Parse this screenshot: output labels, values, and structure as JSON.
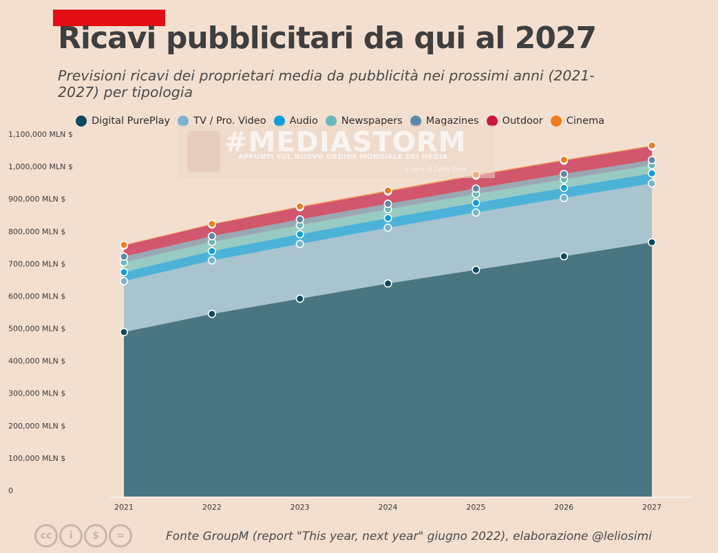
{
  "header": {
    "title": "Ricavi pubblicitari da qui al 2027",
    "subtitle": "Previsioni ricavi dei proprietari media da pubblicità nei prossimi anni (2021-2027) per tipologia"
  },
  "watermark": {
    "main": "#MEDIASTORM",
    "tagline": "APPUNTI SUL NUOVO ORDINE MONDIALE DEI MEDIA",
    "credit": "a cura di Lelio Simi"
  },
  "footer": {
    "source": "Fonte GroupM (report \"This year, next year\" giugno 2022), elaborazione @leliosimi",
    "license_icons": [
      "cc-icon",
      "by-icon",
      "nc-icon",
      "nd-icon"
    ],
    "license_glyphs": [
      "cc",
      "i",
      "$",
      "="
    ]
  },
  "chart_data": {
    "type": "area",
    "stacked": true,
    "categories": [
      "2021",
      "2022",
      "2023",
      "2024",
      "2025",
      "2026",
      "2027"
    ],
    "ylim": [
      0,
      1100000
    ],
    "yticks": [
      0,
      100000,
      200000,
      300000,
      400000,
      500000,
      600000,
      700000,
      800000,
      900000,
      1000000,
      1100000
    ],
    "ytick_labels": [
      "0",
      "100,000 MLN $",
      "200,000 MLN $",
      "300,000 MLN $",
      "400,000 MLN $",
      "500,000 MLN $",
      "600,000 MLN $",
      "700,000 MLN $",
      "800,000 MLN $",
      "900,000 MLN $",
      "1,000,000 MLN $",
      "1,100,000 MLN $"
    ],
    "legend_position": "top",
    "grid": false,
    "series": [
      {
        "name": "Digital PurePlay",
        "color": "#0d4a5e",
        "fill": "#4a7681",
        "values": [
          489000,
          545000,
          592000,
          639000,
          681000,
          723000,
          766000
        ]
      },
      {
        "name": "TV / Pro. Video",
        "color": "#7ab3cf",
        "fill": "#a8c4cf",
        "values": [
          157000,
          165000,
          169000,
          172000,
          177000,
          180000,
          182000
        ]
      },
      {
        "name": "Audio",
        "color": "#0f9edb",
        "fill": "#4cb2d8",
        "values": [
          28000,
          29000,
          30000,
          30000,
          30000,
          31000,
          31000
        ]
      },
      {
        "name": "Newspapers",
        "color": "#6ab8bb",
        "fill": "#98cbc3",
        "values": [
          30000,
          28000,
          28000,
          27000,
          27000,
          26000,
          25000
        ]
      },
      {
        "name": "Magazines",
        "color": "#5e89a6",
        "fill": "#99a9b4",
        "values": [
          18000,
          18000,
          18000,
          17000,
          17000,
          17000,
          16000
        ]
      },
      {
        "name": "Outdoor",
        "color": "#c9183a",
        "fill": "#d0576d",
        "values": [
          34000,
          36000,
          37000,
          38000,
          40000,
          41000,
          42000
        ]
      },
      {
        "name": "Cinema",
        "color": "#f07c20",
        "fill": "#f59a57",
        "values": [
          2000,
          2000,
          3000,
          3000,
          3000,
          3000,
          3000
        ]
      }
    ]
  }
}
